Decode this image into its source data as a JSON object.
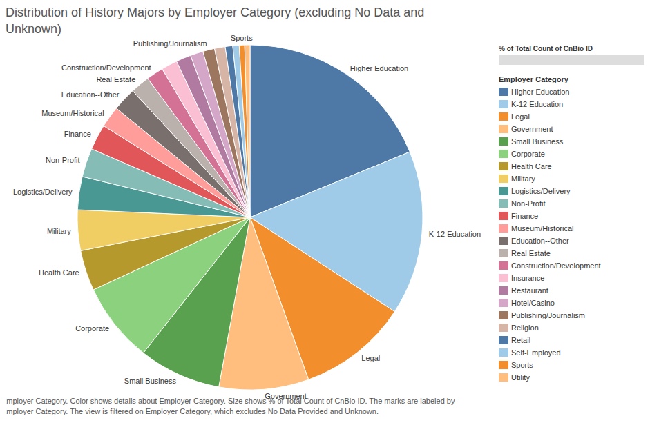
{
  "chart_data": {
    "type": "pie",
    "title": "Distribution of History Majors by Employer Category (excluding No Data and Unknown)",
    "categories": [
      "Higher Education",
      "K-12 Education",
      "Legal",
      "Government",
      "Small Business",
      "Corporate",
      "Health Care",
      "Military",
      "Logistics/Delivery",
      "Non-Profit",
      "Finance",
      "Museum/Historical",
      "Education--Other",
      "Real Estate",
      "Construction/Development",
      "Insurance",
      "Restaurant",
      "Hotel/Casino",
      "Publishing/Journalism",
      "Religion",
      "Retail",
      "Self-Employed",
      "Sports",
      "Utility"
    ],
    "values": [
      18.8,
      15.4,
      10.3,
      8.4,
      7.7,
      7.5,
      3.8,
      3.8,
      3.1,
      2.7,
      2.4,
      2.0,
      2.2,
      1.8,
      1.6,
      1.5,
      1.4,
      1.2,
      1.1,
      1.0,
      0.7,
      0.6,
      0.5,
      0.5
    ],
    "colors": [
      "#4e79a7",
      "#a0cbe8",
      "#f28e2b",
      "#ffbe7d",
      "#59a14f",
      "#8cd17d",
      "#b6992d",
      "#f1ce63",
      "#499894",
      "#86bcb6",
      "#e15759",
      "#ff9d9a",
      "#79706e",
      "#bab0ac",
      "#d37295",
      "#fabfd2",
      "#b07aa1",
      "#d4a6c8",
      "#9d7660",
      "#d7b5a6",
      "#4e79a7",
      "#a0cbe8",
      "#f28e2b",
      "#ffbe7d"
    ],
    "slice_labels": [
      "Higher Education",
      "K-12 Education",
      "Legal",
      "Government",
      "Small Business",
      "Corporate",
      "Health Care",
      "Military",
      "Logistics/Delivery",
      "Non-Profit",
      "Finance",
      "Museum/Historical",
      "Education--Other",
      "Real Estate",
      "Construction/Development",
      null,
      null,
      null,
      "Publishing/Journalism",
      null,
      null,
      null,
      "Sports",
      null
    ],
    "legend": "right",
    "size_legend_title": "% of Total Count of CnBio ID",
    "legend_title": "Employer Category",
    "caption": "Employer Category.  Color shows details about Employer Category.  Size shows % of Total Count of CnBio ID.  The marks are labeled by Employer Category. The view is filtered on Employer Category, which excludes No Data Provided and Unknown."
  }
}
